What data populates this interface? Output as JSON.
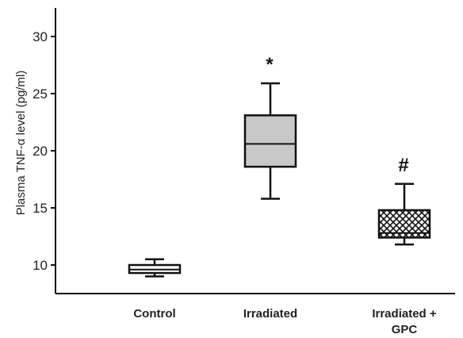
{
  "chart_data": {
    "type": "boxplot",
    "ylabel": "Plasma TNF-α level (pg/ml)",
    "ylim": [
      7.5,
      32.5
    ],
    "y_ticks": [
      10,
      15,
      20,
      25,
      30
    ],
    "grid": false,
    "categories": [
      "Control",
      "Irradiated",
      "Irradiated +\nGPC"
    ],
    "boxes": [
      {
        "category": "Control",
        "whisker_low": 9.0,
        "q1": 9.3,
        "median": 9.6,
        "q3": 10.0,
        "whisker_high": 10.5,
        "fill": "#ffffff",
        "pattern": "none",
        "marker": ""
      },
      {
        "category": "Irradiated",
        "whisker_low": 15.8,
        "q1": 18.6,
        "median": 20.6,
        "q3": 23.1,
        "whisker_high": 25.9,
        "fill": "#c8c8c8",
        "pattern": "none",
        "marker": "*"
      },
      {
        "category": "Irradiated +\nGPC",
        "whisker_low": 11.8,
        "q1": 12.4,
        "median": 12.8,
        "q3": 14.8,
        "whisker_high": 17.1,
        "fill": "#ffffff",
        "pattern": "crosshatch",
        "marker": "#"
      }
    ]
  }
}
